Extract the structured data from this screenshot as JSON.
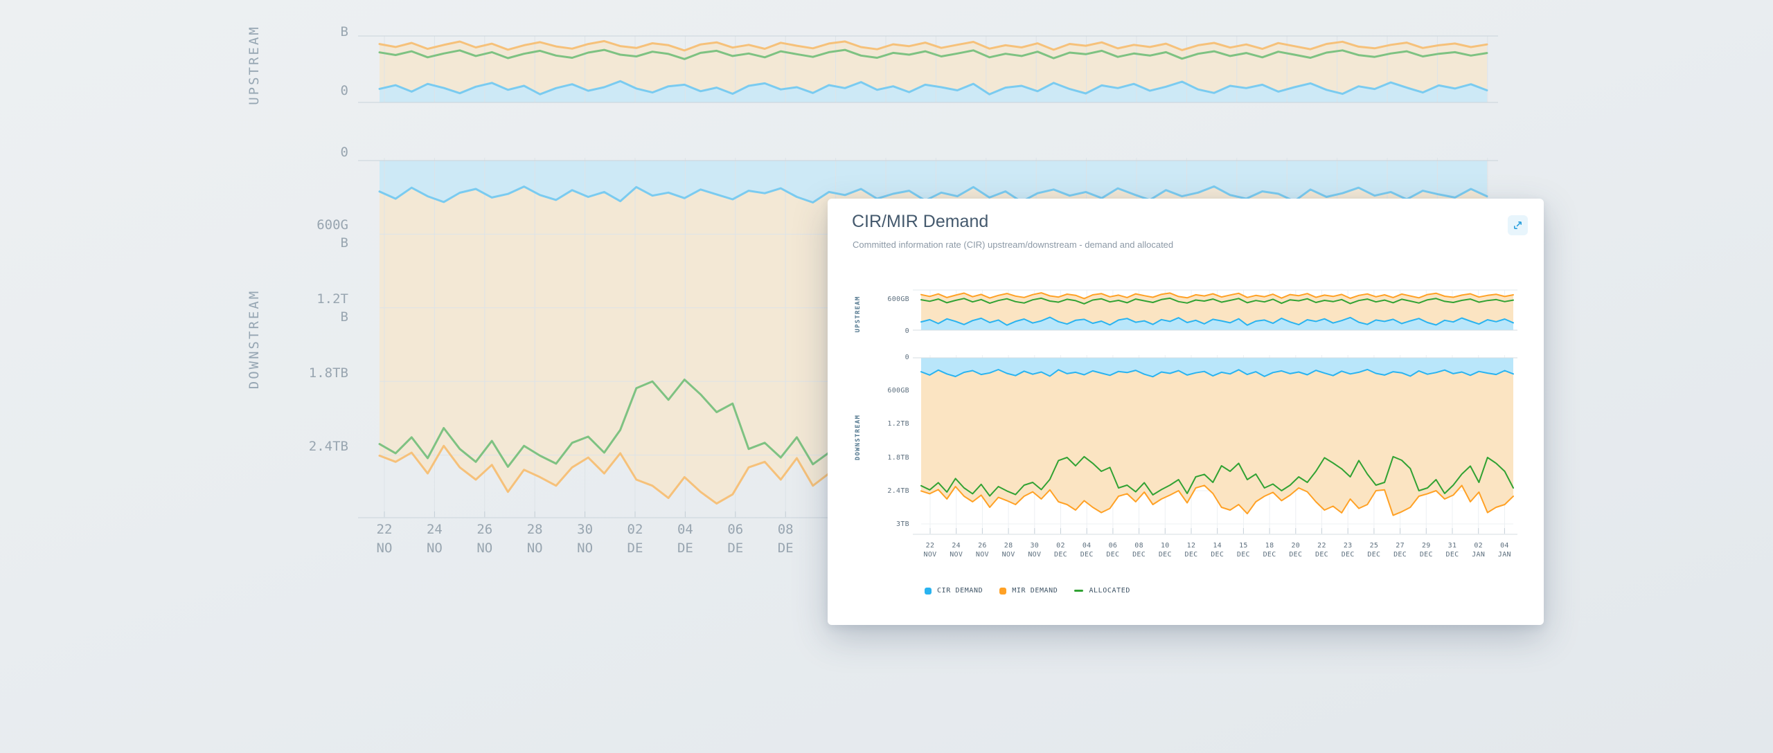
{
  "page": {
    "background_color": "#e9edf0"
  },
  "card": {
    "title": "CIR/MIR Demand",
    "subtitle": "Committed information rate (CIR) upstream/downstream - demand and allocated",
    "expand_icon": "expand-icon",
    "legend": [
      {
        "label": "CIR DEMAND",
        "color": "#29b3f0",
        "swatch": "square"
      },
      {
        "label": "MIR DEMAND",
        "color": "#ffa125",
        "swatch": "square"
      },
      {
        "label": "ALLOCATED",
        "color": "#31a233",
        "swatch": "dash"
      }
    ]
  },
  "colors": {
    "cir_line": "#29b3f0",
    "cir_fill": "#b9e6fa",
    "mir_line": "#ffa125",
    "mir_fill": "#fbe4c2",
    "allocated_line": "#31a233",
    "title_text": "#44596d",
    "subtitle_text": "#8c99a6",
    "axis_text": "#5d6f7e",
    "section_label": "#54788f",
    "legend_text": "#3e5365",
    "grid": "#edf0f3",
    "axis_line": "#d4dce2",
    "expand_icon": "#2b9fdc",
    "expand_bg": "#e8f5fc",
    "card_bg": "#ffffff"
  },
  "x_axis": {
    "ticks": [
      "22 NOV",
      "24 NOV",
      "26 NOV",
      "28 NOV",
      "30 NOV",
      "02 DEC",
      "04 DEC",
      "06 DEC",
      "08 DEC",
      "10 DEC",
      "12 DEC",
      "14 DEC",
      "15 DEC",
      "18 DEC",
      "20 DEC",
      "22 DEC",
      "23 DEC",
      "25 DEC",
      "27 DEC",
      "29 DEC",
      "31 DEC",
      "02 JAN",
      "04 JAN"
    ]
  },
  "background_chart": {
    "upstream_label": "UPSTREAM",
    "downstream_label": "DOWNSTREAM",
    "upstream_y_ticks": [
      "B",
      "0"
    ],
    "downstream_y_ticks": [
      "0",
      "600G B",
      "1.2T B",
      "1.8TB",
      "2.4TB"
    ],
    "x_ticks": [
      "22 NO",
      "24 NO",
      "26 NO",
      "28 NO",
      "30 NO",
      "02 DE",
      "04 DE",
      "06 DE",
      "08 DE"
    ]
  },
  "chart_data": [
    {
      "id": "upstream",
      "type": "area",
      "section_label": "UPSTREAM",
      "unit": "GB",
      "ylim": [
        0,
        745
      ],
      "y_ticks": [
        "600GB",
        "0"
      ],
      "series": [
        {
          "name": "MIR DEMAND",
          "values": [
            655,
            622,
            668,
            601,
            645,
            683,
            617,
            659,
            592,
            641,
            676,
            628,
            603,
            655,
            688,
            632,
            611,
            664,
            642,
            583,
            651,
            674,
            616,
            646,
            602,
            669,
            636,
            607,
            661,
            684,
            621,
            596,
            652,
            631,
            671,
            612,
            647,
            679,
            603,
            641,
            617,
            663,
            591,
            656,
            636,
            674,
            606,
            646,
            622,
            659,
            587,
            641,
            668,
            616,
            651,
            601,
            666,
            631,
            597,
            656,
            681,
            626,
            607,
            646,
            671,
            611,
            641,
            661,
            621,
            651
          ]
        },
        {
          "name": "ALLOCATED",
          "values": [
            561,
            532,
            574,
            506,
            549,
            584,
            521,
            564,
            497,
            546,
            579,
            526,
            501,
            559,
            589,
            536,
            516,
            569,
            544,
            487,
            556,
            579,
            521,
            549,
            506,
            574,
            541,
            511,
            564,
            589,
            526,
            501,
            556,
            536,
            574,
            516,
            549,
            584,
            506,
            546,
            521,
            569,
            496,
            559,
            541,
            579,
            511,
            549,
            526,
            564,
            491,
            546,
            574,
            521,
            554,
            506,
            569,
            536,
            501,
            559,
            584,
            531,
            511,
            549,
            574,
            516,
            546,
            564,
            526,
            554
          ]
        },
        {
          "name": "CIR DEMAND",
          "values": [
            152,
            193,
            121,
            208,
            162,
            103,
            176,
            219,
            141,
            186,
            92,
            161,
            204,
            131,
            171,
            238,
            156,
            112,
            181,
            199,
            126,
            166,
            97,
            186,
            214,
            146,
            171,
            106,
            194,
            161,
            228,
            141,
            181,
            116,
            199,
            171,
            136,
            209,
            92,
            166,
            186,
            126,
            219,
            151,
            101,
            191,
            161,
            208,
            131,
            176,
            233,
            146,
            106,
            186,
            161,
            199,
            121,
            171,
            214,
            141,
            96,
            181,
            151,
            224,
            166,
            112,
            191,
            156,
            204,
            136
          ]
        }
      ]
    },
    {
      "id": "downstream",
      "type": "area",
      "section_label": "DOWNSTREAM",
      "unit": "GB",
      "inverted_y": true,
      "ylim": [
        0,
        3100
      ],
      "y_ticks": [
        "0",
        "600GB",
        "1.2TB",
        "1.8TB",
        "2.4TB",
        "3TB"
      ],
      "series": [
        {
          "name": "MIR DEMAND",
          "values": [
            2405,
            2455,
            2380,
            2550,
            2325,
            2500,
            2600,
            2480,
            2700,
            2520,
            2580,
            2650,
            2500,
            2420,
            2550,
            2385,
            2600,
            2650,
            2750,
            2580,
            2700,
            2795,
            2720,
            2500,
            2455,
            2600,
            2425,
            2650,
            2550,
            2480,
            2400,
            2620,
            2350,
            2305,
            2450,
            2700,
            2750,
            2650,
            2815,
            2600,
            2500,
            2430,
            2580,
            2480,
            2350,
            2420,
            2600,
            2750,
            2680,
            2800,
            2550,
            2720,
            2650,
            2400,
            2385,
            2845,
            2780,
            2700,
            2500,
            2455,
            2400,
            2550,
            2480,
            2305,
            2600,
            2425,
            2795,
            2700,
            2650,
            2500
          ]
        },
        {
          "name": "ALLOCATED",
          "values": [
            2310,
            2385,
            2255,
            2425,
            2180,
            2350,
            2455,
            2285,
            2495,
            2325,
            2405,
            2470,
            2300,
            2250,
            2380,
            2195,
            1855,
            1800,
            1950,
            1785,
            1905,
            2050,
            1980,
            2350,
            2300,
            2420,
            2255,
            2475,
            2380,
            2300,
            2200,
            2450,
            2150,
            2105,
            2250,
            1950,
            2050,
            1905,
            2200,
            2100,
            2350,
            2280,
            2400,
            2300,
            2150,
            2250,
            2050,
            1805,
            1900,
            2005,
            2150,
            1855,
            2100,
            2300,
            2250,
            1785,
            1850,
            2000,
            2400,
            2350,
            2200,
            2450,
            2300,
            2100,
            1955,
            2250,
            1800,
            1905,
            2050,
            2350
          ]
        },
        {
          "name": "CIR DEMAND",
          "values": [
            252,
            311,
            221,
            291,
            338,
            262,
            231,
            301,
            272,
            212,
            281,
            321,
            241,
            296,
            256,
            331,
            216,
            286,
            261,
            306,
            236,
            276,
            316,
            246,
            266,
            226,
            296,
            341,
            256,
            281,
            231,
            311,
            271,
            246,
            326,
            261,
            291,
            216,
            301,
            251,
            336,
            266,
            236,
            286,
            256,
            306,
            226,
            276,
            321,
            241,
            291,
            261,
            211,
            281,
            311,
            251,
            271,
            331,
            236,
            296,
            266,
            221,
            286,
            256,
            316,
            246,
            276,
            301,
            231,
            291
          ]
        }
      ]
    }
  ]
}
